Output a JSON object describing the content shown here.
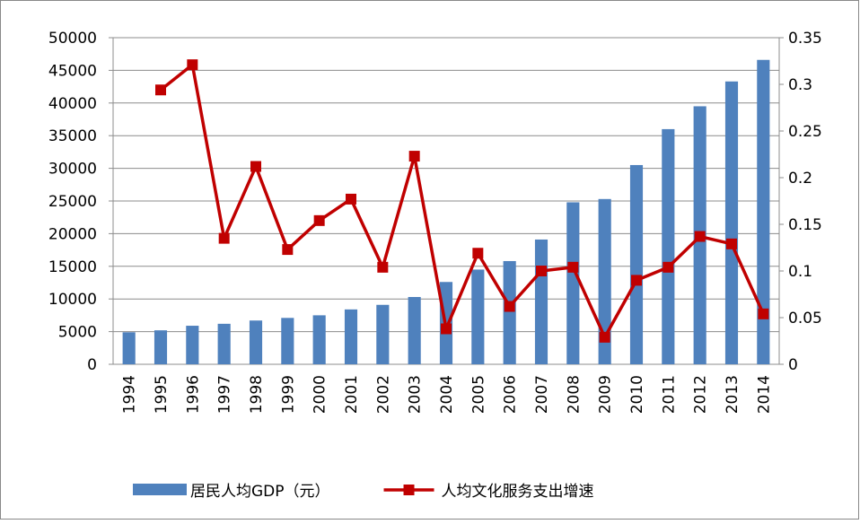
{
  "chart_data": {
    "type": "bar_line",
    "categories": [
      "1994",
      "1995",
      "1996",
      "1997",
      "1998",
      "1999",
      "2000",
      "2001",
      "2002",
      "2003",
      "2004",
      "2005",
      "2006",
      "2007",
      "2008",
      "2009",
      "2010",
      "2011",
      "2012",
      "2013",
      "2014"
    ],
    "series": [
      {
        "name": "居民人均GDP（元）",
        "type": "bar",
        "color": "#4f81bd",
        "values": [
          4900,
          5200,
          5900,
          6200,
          6700,
          7100,
          7500,
          8400,
          9100,
          10300,
          12600,
          14500,
          15800,
          19100,
          24800,
          25300,
          30500,
          36000,
          39500,
          43300,
          46600
        ]
      },
      {
        "name": "人均文化服务支出增速",
        "type": "line",
        "axis": "y2",
        "color": "#c00000",
        "values": [
          null,
          0.294,
          0.321,
          0.135,
          0.212,
          0.123,
          0.154,
          0.177,
          0.104,
          0.223,
          0.038,
          0.119,
          0.062,
          0.1,
          0.104,
          0.029,
          0.09,
          0.104,
          0.137,
          0.129,
          0.054
        ]
      }
    ],
    "ylim": [
      0,
      50000
    ],
    "yticks": [
      0,
      5000,
      10000,
      15000,
      20000,
      25000,
      30000,
      35000,
      40000,
      45000,
      50000
    ],
    "y2lim": [
      0,
      0.35
    ],
    "y2ticks": [
      0,
      0.05,
      0.1,
      0.15,
      0.2,
      0.25,
      0.3,
      0.35
    ],
    "grid": true,
    "legend": "bottom"
  }
}
